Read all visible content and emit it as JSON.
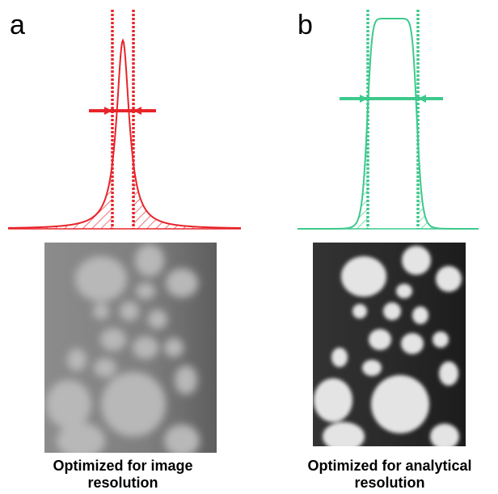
{
  "panels": [
    {
      "letter": "a",
      "caption": [
        "Optimized for image",
        "resolution"
      ]
    },
    {
      "letter": "b",
      "caption": [
        "Optimized for analytical",
        "resolution"
      ]
    }
  ]
}
